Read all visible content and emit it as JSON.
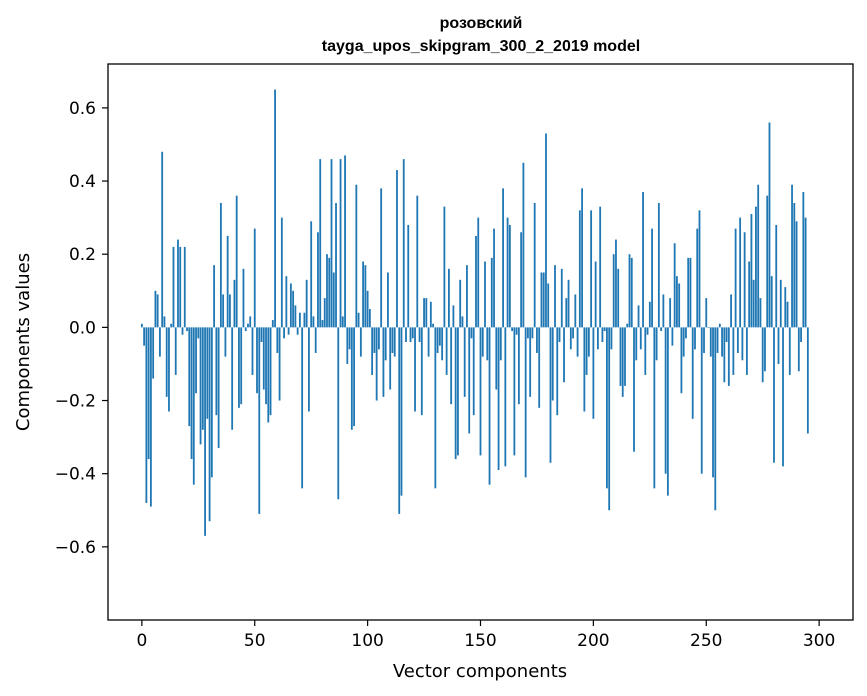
{
  "chart_data": {
    "type": "bar",
    "title": "розовский",
    "subtitle": "tayga_upos_skipgram_300_2_2019 model",
    "xlabel": "Vector components",
    "ylabel": "Components values",
    "xlim": [
      -15,
      315
    ],
    "ylim": [
      -0.8,
      0.72
    ],
    "xticks": [
      0,
      50,
      100,
      150,
      200,
      250,
      300
    ],
    "yticks": [
      -0.6,
      -0.4,
      -0.2,
      0.0,
      0.2,
      0.4,
      0.6
    ],
    "ytick_labels": [
      "−0.6",
      "−0.4",
      "−0.2",
      "0.0",
      "0.2",
      "0.4",
      "0.6"
    ],
    "xtick_labels": [
      "0",
      "50",
      "100",
      "150",
      "200",
      "250",
      "300"
    ],
    "bar_color": "#1f77b4",
    "grid": false,
    "series": [
      {
        "values": [
          0.01,
          -0.05,
          -0.48,
          -0.36,
          -0.49,
          -0.14,
          0.1,
          0.09,
          -0.08,
          0.48,
          0.03,
          -0.19,
          -0.23,
          0.01,
          0.22,
          -0.13,
          0.24,
          0.22,
          -0.02,
          0.22,
          -0.01,
          -0.27,
          -0.36,
          -0.43,
          -0.18,
          -0.03,
          -0.32,
          -0.28,
          -0.57,
          -0.25,
          -0.53,
          -0.41,
          0.17,
          -0.24,
          -0.33,
          0.34,
          0.09,
          -0.08,
          0.25,
          0.09,
          -0.28,
          0.13,
          0.36,
          -0.22,
          -0.21,
          0.16,
          -0.01,
          0.01,
          0.03,
          -0.13,
          0.27,
          -0.18,
          -0.51,
          -0.04,
          -0.17,
          -0.21,
          -0.26,
          -0.24,
          0.02,
          0.65,
          -0.07,
          -0.2,
          0.3,
          -0.03,
          0.14,
          -0.02,
          0.12,
          0.1,
          0.06,
          -0.02,
          0.04,
          -0.44,
          0.04,
          0.13,
          -0.23,
          0.29,
          0.03,
          -0.07,
          0.26,
          0.46,
          0.02,
          0.08,
          0.2,
          0.19,
          0.46,
          0.15,
          0.34,
          -0.47,
          0.46,
          0.03,
          0.47,
          -0.1,
          -0.06,
          -0.28,
          -0.27,
          0.39,
          0.04,
          -0.08,
          0.18,
          0.17,
          0.1,
          0.05,
          -0.13,
          -0.07,
          -0.2,
          -0.06,
          0.38,
          -0.19,
          -0.09,
          0.15,
          -0.17,
          -0.07,
          -0.08,
          0.43,
          -0.51,
          -0.46,
          0.46,
          -0.04,
          0.28,
          -0.04,
          -0.03,
          -0.23,
          0.36,
          -0.04,
          -0.24,
          0.08,
          0.08,
          -0.08,
          0.07,
          0.01,
          -0.44,
          -0.07,
          -0.05,
          -0.09,
          0.33,
          -0.13,
          0.16,
          -0.21,
          0.06,
          -0.36,
          -0.35,
          0.13,
          0.03,
          -0.19,
          0.17,
          -0.29,
          -0.03,
          -0.24,
          0.25,
          0.3,
          -0.35,
          -0.08,
          0.18,
          -0.09,
          -0.43,
          0.19,
          0.27,
          -0.17,
          -0.39,
          -0.09,
          0.38,
          -0.38,
          0.3,
          0.28,
          -0.01,
          -0.35,
          -0.02,
          -0.21,
          0.26,
          0.45,
          -0.41,
          -0.03,
          -0.19,
          -0.03,
          0.34,
          -0.07,
          -0.22,
          0.15,
          0.15,
          0.53,
          0.12,
          -0.37,
          -0.2,
          0.17,
          -0.24,
          -0.04,
          0.16,
          -0.15,
          0.08,
          0.13,
          -0.06,
          -0.03,
          0.09,
          -0.08,
          0.32,
          0.38,
          -0.23,
          -0.13,
          -0.08,
          0.32,
          -0.25,
          0.18,
          -0.06,
          0.33,
          -0.04,
          -0.01,
          -0.44,
          -0.5,
          -0.06,
          0.2,
          0.24,
          0.16,
          -0.16,
          -0.19,
          -0.16,
          0.01,
          0.2,
          0.19,
          -0.34,
          -0.09,
          0.06,
          -0.06,
          0.37,
          -0.13,
          -0.02,
          0.07,
          0.27,
          -0.44,
          -0.09,
          0.34,
          -0.01,
          0.09,
          -0.4,
          -0.46,
          0.08,
          -0.05,
          0.23,
          0.14,
          0.12,
          -0.18,
          -0.08,
          -0.03,
          0.19,
          0.19,
          -0.25,
          -0.06,
          0.27,
          0.32,
          -0.4,
          -0.07,
          0.08,
          0.0,
          -0.08,
          -0.41,
          -0.5,
          -0.07,
          0.01,
          -0.08,
          -0.15,
          -0.04,
          -0.16,
          0.09,
          -0.13,
          0.27,
          -0.07,
          0.3,
          -0.09,
          0.26,
          -0.13,
          0.18,
          0.31,
          0.13,
          0.33,
          0.39,
          0.08,
          -0.15,
          -0.12,
          0.36,
          0.56,
          0.14,
          -0.37,
          0.28,
          -0.1,
          0.13,
          -0.38,
          0.11,
          0.07,
          -0.13,
          0.39,
          0.34,
          0.29,
          -0.12,
          -0.04,
          0.37,
          0.3,
          -0.29
        ]
      }
    ]
  }
}
